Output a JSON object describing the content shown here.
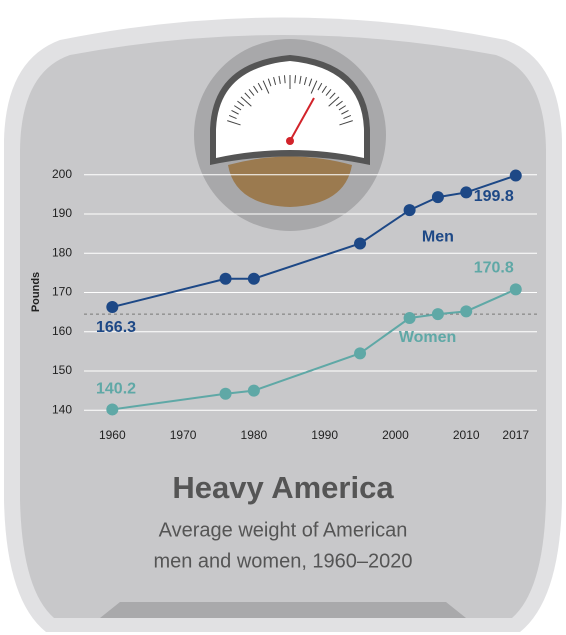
{
  "chart_data": {
    "type": "line",
    "title": "Heavy America",
    "subtitle": [
      "Average weight of American",
      "men and women, 1960–2020"
    ],
    "y_label": "Pounds",
    "x": [
      1960,
      1976,
      1980,
      1995,
      2002,
      2006,
      2010,
      2017
    ],
    "series": [
      {
        "name": "Men",
        "color": "#1d4886",
        "values": [
          166.3,
          173.5,
          173.5,
          182.5,
          191,
          194.3,
          195.5,
          199.8
        ]
      },
      {
        "name": "Women",
        "color": "#5fa8a6",
        "values": [
          140.2,
          144.2,
          145,
          154.5,
          163.5,
          164.5,
          165.2,
          170.8
        ]
      }
    ],
    "xlim": [
      1956,
      2020
    ],
    "xticks": [
      1960,
      1970,
      1980,
      1990,
      2000,
      2010,
      2017
    ],
    "ylim": [
      137,
      203
    ],
    "yticks": [
      140,
      150,
      160,
      170,
      180,
      190,
      200
    ],
    "reference_line": 164.5,
    "grid": true
  }
}
